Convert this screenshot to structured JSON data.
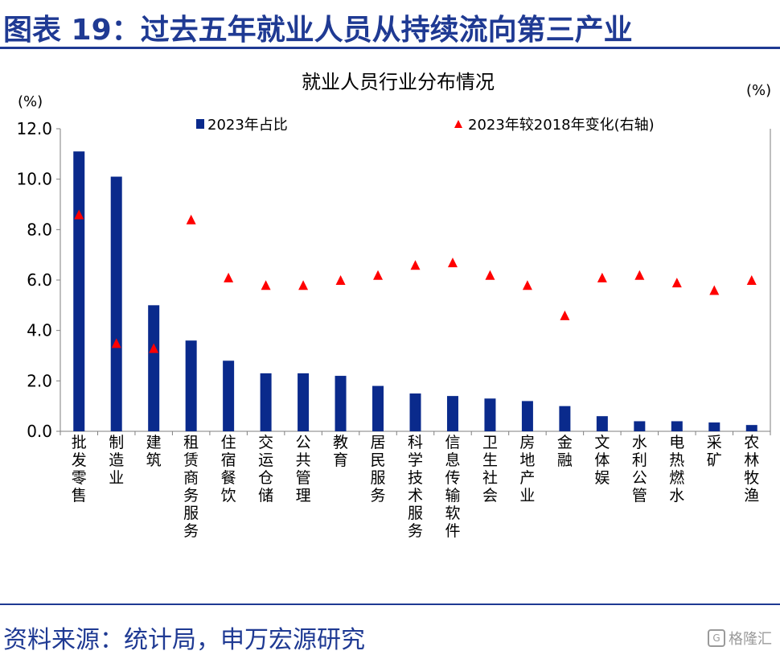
{
  "page": {
    "title": "图表 19：过去五年就业人员从持续流向第三产业",
    "source": "资料来源：统计局，申万宏源研究",
    "watermark": "格隆汇"
  },
  "colors": {
    "brand_blue": "#1f3a93",
    "bar": "#0a2a8c",
    "marker": "#ff0000"
  },
  "chart_data": {
    "type": "bar",
    "title": "就业人员行业分布情况",
    "y_unit_left": "(%)",
    "y_unit_right": "(%)",
    "ylim": [
      0,
      12
    ],
    "y_ticks": [
      "0.0",
      "2.0",
      "4.0",
      "6.0",
      "8.0",
      "10.0",
      "12.0"
    ],
    "grid": false,
    "legend_position": "top",
    "categories": [
      "批发零售",
      "制造业",
      "建筑",
      "租赁商务服务",
      "住宿餐饮",
      "交运仓储",
      "公共管理",
      "教育",
      "居民服务",
      "科学技术服务",
      "信息传输软件",
      "卫生社会",
      "房地产业",
      "金融",
      "文体娱",
      "水利公管",
      "电热燃水",
      "采矿",
      "农林牧渔"
    ],
    "series": [
      {
        "name": "2023年占比",
        "type": "bar",
        "axis": "left",
        "values": [
          11.1,
          10.1,
          5.0,
          3.6,
          2.8,
          2.3,
          2.3,
          2.2,
          1.8,
          1.5,
          1.4,
          1.3,
          1.2,
          1.0,
          0.6,
          0.4,
          0.4,
          0.35,
          0.25
        ]
      },
      {
        "name": "2023年较2018年变化(右轴)",
        "type": "scatter",
        "marker": "triangle",
        "axis": "right",
        "values": [
          8.6,
          3.5,
          3.3,
          8.4,
          6.1,
          5.8,
          5.8,
          6.0,
          6.2,
          6.6,
          6.7,
          6.2,
          5.8,
          4.6,
          6.1,
          6.2,
          5.9,
          5.6,
          6.0
        ]
      }
    ]
  }
}
